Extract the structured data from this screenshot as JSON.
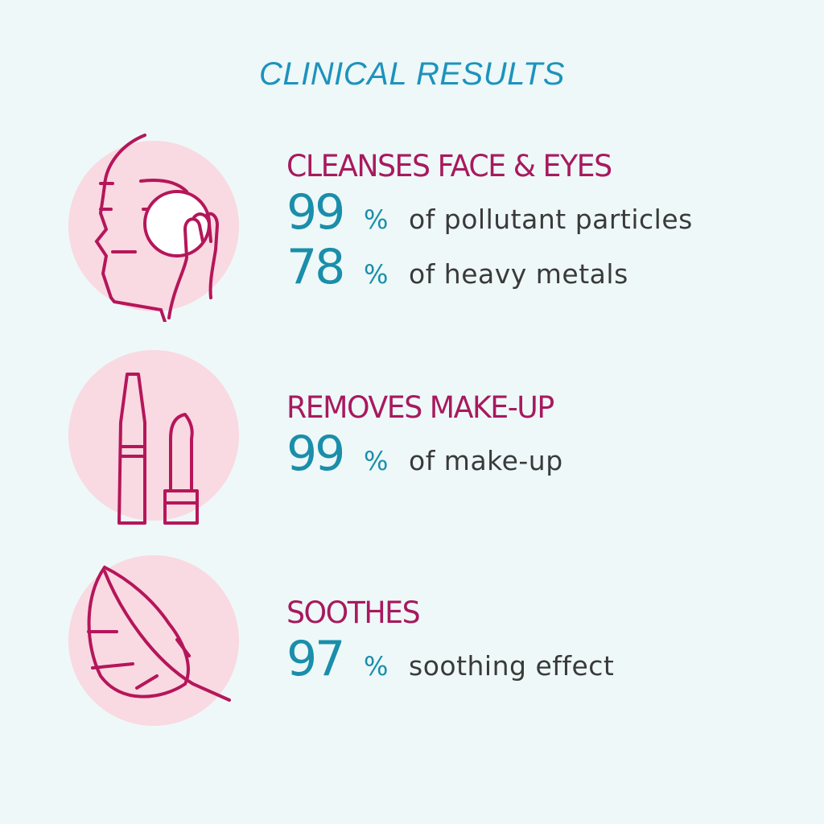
{
  "title": "CLINICAL RESULTS",
  "colors": {
    "background": "#eef8f8",
    "title": "#1c93bd",
    "heading": "#a8195e",
    "number": "#1a8eaa",
    "circle": "#f9d9e2"
  },
  "sections": [
    {
      "icon": "face-cleansing-icon",
      "heading": "CLEANSES FACE & EYES",
      "stats": [
        {
          "value": "99",
          "unit": "%",
          "text": "of pollutant particles"
        },
        {
          "value": "78",
          "unit": "%",
          "text": "of heavy metals"
        }
      ]
    },
    {
      "icon": "makeup-icon",
      "heading": "REMOVES MAKE-UP",
      "stats": [
        {
          "value": "99",
          "unit": "%",
          "text": "of make-up"
        }
      ]
    },
    {
      "icon": "feather-icon",
      "heading": "SOOTHES",
      "stats": [
        {
          "value": "97",
          "unit": "%",
          "text": "soothing effect"
        }
      ]
    }
  ]
}
